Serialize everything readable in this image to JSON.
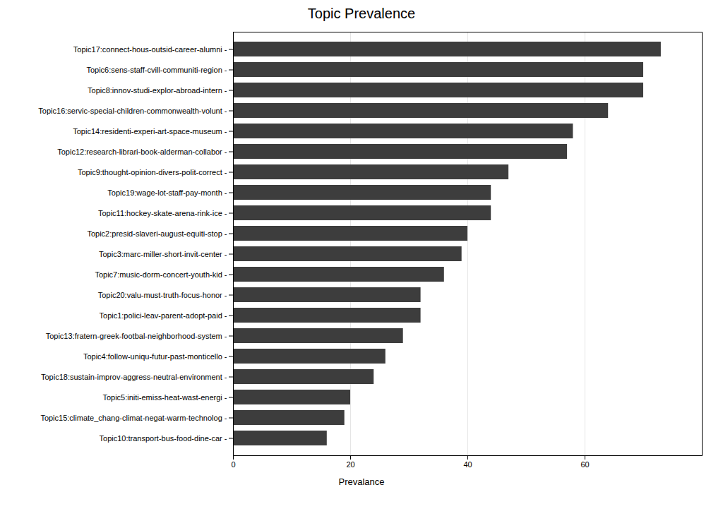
{
  "chart_data": {
    "type": "bar",
    "orientation": "horizontal",
    "title": "Topic Prevalence",
    "xlabel": "Prevalance",
    "categories": [
      "Topic17:connect-hous-outsid-career-alumni -",
      "Topic6:sens-staff-cvill-communiti-region -",
      "Topic8:innov-studi-explor-abroad-intern -",
      "Topic16:servic-special-children-commonwealth-volunt -",
      "Topic14:residenti-experi-art-space-museum -",
      "Topic12:research-librari-book-alderman-collabor -",
      "Topic9:thought-opinion-divers-polit-correct -",
      "Topic19:wage-lot-staff-pay-month -",
      "Topic11:hockey-skate-arena-rink-ice -",
      "Topic2:presid-slaveri-august-equiti-stop -",
      "Topic3:marc-miller-short-invit-center -",
      "Topic7:music-dorm-concert-youth-kid -",
      "Topic20:valu-must-truth-focus-honor -",
      "Topic1:polici-leav-parent-adopt-paid -",
      "Topic13:fratern-greek-footbal-neighborhood-system -",
      "Topic4:follow-uniqu-futur-past-monticello -",
      "Topic18:sustain-improv-aggress-neutral-environment -",
      "Topic5:initi-emiss-heat-wast-energi -",
      "Topic15:climate_chang-climat-negat-warm-technolog -",
      "Topic10:transport-bus-food-dine-car -"
    ],
    "values": [
      73,
      70,
      70,
      64,
      58,
      57,
      47,
      44,
      44,
      40,
      39,
      36,
      32,
      32,
      29,
      26,
      24,
      20,
      19,
      16
    ],
    "color": "#3d3d3d",
    "xlim": [
      0,
      80
    ],
    "xticks": [
      0,
      20,
      40,
      60
    ],
    "grid": true
  }
}
